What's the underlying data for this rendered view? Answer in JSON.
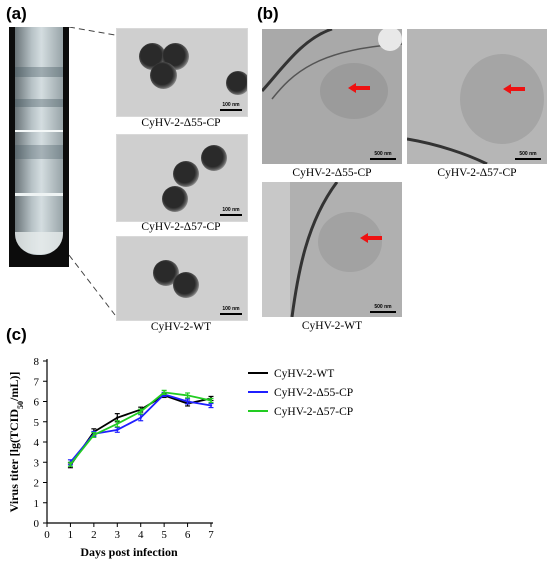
{
  "panels": {
    "a": "(a)",
    "b": "(b)",
    "c": "(c)"
  },
  "tem_images": [
    {
      "label": "CyHV-2-Δ55-CP",
      "scale": "100 nm"
    },
    {
      "label": "CyHV-2-Δ57-CP",
      "scale": "100 nm"
    },
    {
      "label": "CyHV-2-WT",
      "scale": "100 nm"
    }
  ],
  "section_images": [
    {
      "label": "CyHV-2-Δ55-CP",
      "scale": "500 nm"
    },
    {
      "label": "CyHV-2-Δ57-CP",
      "scale": "500 nm"
    },
    {
      "label": "CyHV-2-WT",
      "scale": "500 nm"
    }
  ],
  "colors": {
    "wt": "#000000",
    "d55": "#1f1fff",
    "d57": "#22cc22",
    "arrow": "#ee1111"
  },
  "chart_data": {
    "type": "line",
    "xlabel": "Days post infection",
    "ylabel_main": "Virus titer [lg(TCID",
    "ylabel_sub": "50",
    "ylabel_end": "/mL)]",
    "x": [
      1,
      2,
      3,
      4,
      5,
      6,
      7
    ],
    "xlim": [
      0,
      7
    ],
    "ylim": [
      0,
      8
    ],
    "xticks": [
      0,
      1,
      2,
      3,
      4,
      5,
      6,
      7
    ],
    "yticks": [
      0,
      1,
      2,
      3,
      4,
      5,
      6,
      7,
      8
    ],
    "series": [
      {
        "name": "CyHV-2-WT",
        "color": "#000000",
        "values": [
          2.85,
          4.5,
          5.2,
          5.6,
          6.3,
          5.9,
          6.15
        ],
        "err": [
          0.12,
          0.15,
          0.2,
          0.12,
          0.1,
          0.12,
          0.1
        ]
      },
      {
        "name": "CyHV-2-Δ55-CP",
        "color": "#1f1fff",
        "values": [
          3.0,
          4.4,
          4.6,
          5.2,
          6.35,
          6.0,
          5.8
        ],
        "err": [
          0.12,
          0.12,
          0.12,
          0.15,
          0.1,
          0.12,
          0.1
        ]
      },
      {
        "name": "CyHV-2-Δ57-CP",
        "color": "#22cc22",
        "values": [
          2.9,
          4.35,
          4.9,
          5.5,
          6.45,
          6.3,
          6.05
        ],
        "err": [
          0.1,
          0.12,
          0.15,
          0.12,
          0.1,
          0.12,
          0.1
        ]
      }
    ],
    "legend_position": "right"
  }
}
